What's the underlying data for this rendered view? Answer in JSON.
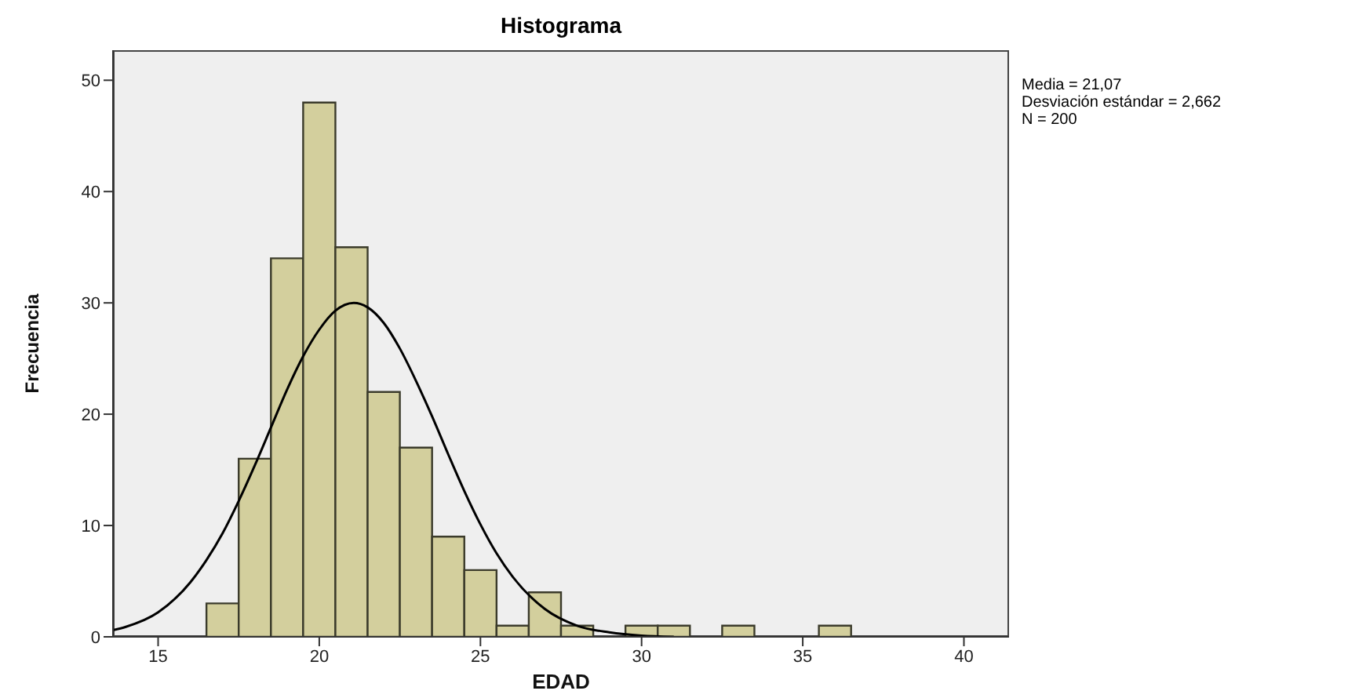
{
  "chart_data": {
    "type": "histogram",
    "title": "Histograma",
    "xlabel": "EDAD",
    "ylabel": "Frecuencia",
    "bins": [
      16.5,
      17.5,
      18.5,
      19.5,
      20.5,
      21.5,
      22.5,
      23.5,
      24.5,
      25.5,
      26.5,
      27.5,
      28.5,
      29.5,
      30.5,
      31.5,
      32.5,
      33.5,
      34.5,
      35.5,
      36.5
    ],
    "values": [
      3,
      16,
      34,
      48,
      35,
      22,
      17,
      9,
      6,
      1,
      4,
      1,
      0,
      1,
      1,
      0,
      1,
      0,
      0,
      1
    ],
    "color": "#d3cf9d",
    "series": [
      {
        "type": "line",
        "color": "#000000",
        "x": [
          13.6,
          14,
          15,
          16,
          16.5,
          17,
          17.5,
          18,
          18.5,
          19,
          19.5,
          20,
          20.5,
          21.07,
          21.5,
          22,
          22.5,
          23,
          23.5,
          24,
          24.5,
          25,
          25.5,
          26,
          27,
          28,
          29,
          30,
          31
        ],
        "values": [
          0.6,
          0.9,
          2.2,
          4.9,
          6.9,
          9.3,
          12.2,
          15.4,
          18.8,
          22.2,
          25.2,
          27.6,
          29.3,
          30,
          29.6,
          28.2,
          25.9,
          23,
          19.8,
          16.4,
          13.1,
          10.1,
          7.5,
          5.4,
          2.5,
          1,
          0.4,
          0.1,
          0
        ]
      }
    ],
    "xlim": [
      13.6,
      41.4
    ],
    "xticks": [
      15,
      20,
      25,
      30,
      35,
      40
    ],
    "ylim": [
      0,
      52.7
    ],
    "yticks": [
      0,
      10,
      20,
      30,
      40,
      50
    ],
    "annotations": [
      "Media = 21,07",
      "Desviación estándar = 2,662",
      "N = 200"
    ]
  }
}
